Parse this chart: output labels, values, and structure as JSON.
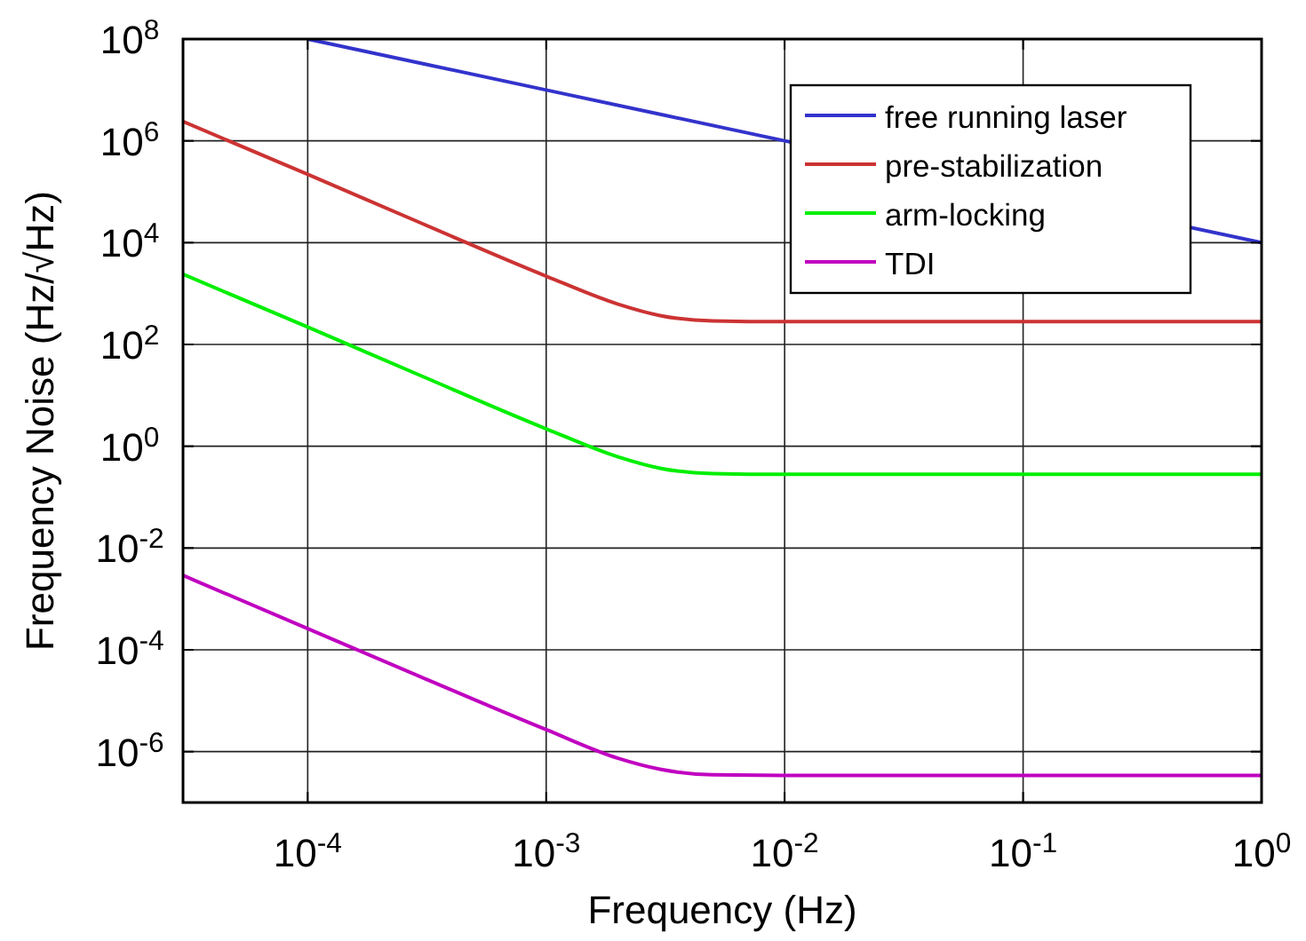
{
  "chart_data": {
    "type": "line",
    "xlabel": "Frequency (Hz)",
    "ylabel": "Frequency Noise (Hz/√Hz)",
    "log": "xy",
    "grid": true,
    "legend": "top right",
    "line_style": "solid",
    "marker": "none",
    "xlim": [
      3e-05,
      1
    ],
    "xticks": [
      {
        "value": 0.0001,
        "label": "10$^{-4}$"
      },
      {
        "value": 0.001,
        "label": "10$^{-3}$"
      },
      {
        "value": 0.01,
        "label": "10$^{-2}$"
      },
      {
        "value": 0.1,
        "label": "10$^{-1}$"
      },
      {
        "value": 1,
        "label": "10$^{0}$"
      }
    ],
    "ylim": [
      1e-07,
      100000000.0
    ],
    "yticks": [
      {
        "value": 1e-06,
        "label": "10$^{-6}$"
      },
      {
        "value": 0.0001,
        "label": "10$^{-4}$"
      },
      {
        "value": 0.01,
        "label": "10$^{-2}$"
      },
      {
        "value": 1,
        "label": "10$^{0}$"
      },
      {
        "value": 100,
        "label": "10$^{2}$"
      },
      {
        "value": 10000,
        "label": "10$^{4}$"
      },
      {
        "value": 1000000,
        "label": "10$^{6}$"
      },
      {
        "value": 100000000,
        "label": "10$^{8}$"
      }
    ],
    "series": [
      {
        "name": "free running laser",
        "color": "#3333cc",
        "x": [
          0.0001,
          0.001,
          0.01,
          0.1,
          1
        ],
        "values": [
          100000000.0,
          10000000.0,
          1000000.0,
          null,
          10000.0
        ]
      },
      {
        "name": "pre-stabilization",
        "color": "#cc3333",
        "x": [
          3e-05,
          0.0001,
          0.0003,
          0.001,
          0.002,
          0.003,
          0.005,
          0.01,
          0.1,
          1
        ],
        "values": [
          2400000.0,
          220000.0,
          24000.0,
          2200,
          620,
          370,
          290,
          280,
          280,
          280
        ]
      },
      {
        "name": "arm-locking",
        "color": "#00ee00",
        "x": [
          3e-05,
          0.0001,
          0.0003,
          0.001,
          0.002,
          0.003,
          0.005,
          0.01,
          0.1,
          1
        ],
        "values": [
          2400,
          220,
          24,
          2.2,
          0.62,
          0.37,
          0.29,
          0.28,
          0.28,
          0.28
        ]
      },
      {
        "name": "TDI",
        "color": "#c000c0",
        "x": [
          3e-05,
          0.0001,
          0.0003,
          0.001,
          0.002,
          0.003,
          0.005,
          0.01,
          0.1,
          1
        ],
        "values": [
          0.0029,
          0.00026,
          2.9e-05,
          2.7e-06,
          7.4e-07,
          4.5e-07,
          3.5e-07,
          3.4e-07,
          3.4e-07,
          3.4e-07
        ]
      }
    ]
  }
}
